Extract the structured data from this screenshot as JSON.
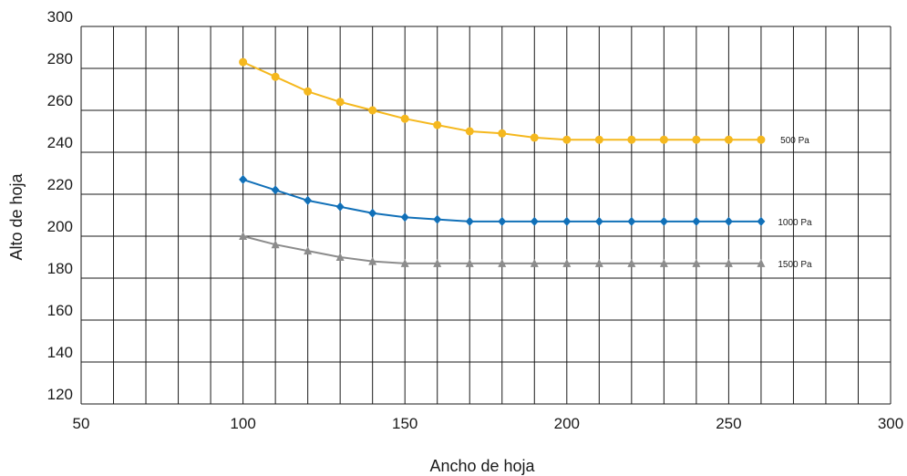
{
  "chart_data": {
    "type": "line",
    "xlabel": "Ancho de hoja",
    "ylabel": "Alto de hoja",
    "xlim": [
      50,
      300
    ],
    "ylim": [
      120,
      300
    ],
    "x_ticks": [
      50,
      100,
      150,
      200,
      250,
      300
    ],
    "y_ticks": [
      120,
      140,
      160,
      180,
      200,
      220,
      240,
      260,
      280,
      300
    ],
    "x_minor_step": 10,
    "y_minor_step": 20,
    "grid": true,
    "legend": "inline labels at right end of each series",
    "x": [
      100,
      110,
      120,
      130,
      140,
      150,
      160,
      170,
      180,
      190,
      200,
      210,
      220,
      230,
      240,
      250,
      260
    ],
    "series": [
      {
        "name": "500 Pa",
        "color": "#F5B81E",
        "marker": "circle",
        "values": [
          283,
          276,
          269,
          264,
          260,
          256,
          253,
          250,
          249,
          247,
          246,
          246,
          246,
          246,
          246,
          246,
          246
        ]
      },
      {
        "name": "1000 Pa",
        "color": "#1170B8",
        "marker": "diamond",
        "values": [
          227,
          222,
          217,
          214,
          211,
          209,
          208,
          207,
          207,
          207,
          207,
          207,
          207,
          207,
          207,
          207,
          207
        ]
      },
      {
        "name": "1500 Pa",
        "color": "#8C8C8C",
        "marker": "triangle",
        "values": [
          200,
          196,
          193,
          190,
          188,
          187,
          187,
          187,
          187,
          187,
          187,
          187,
          187,
          187,
          187,
          187,
          187
        ]
      }
    ]
  }
}
